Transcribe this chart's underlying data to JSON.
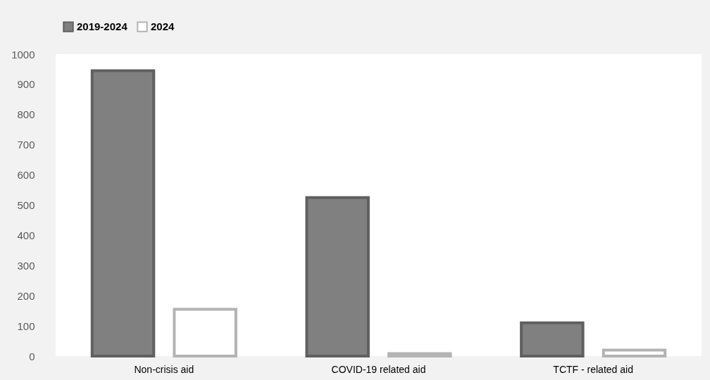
{
  "chart_data": {
    "type": "bar",
    "categories": [
      "Non-crisis aid",
      "COVID-19 related aid",
      "TCTF - related aid"
    ],
    "series": [
      {
        "name": "2019-2024",
        "color": "#808080",
        "values": [
          945,
          525,
          110
        ]
      },
      {
        "name": "2024",
        "color": "#ffffff",
        "values": [
          155,
          8,
          20
        ]
      }
    ],
    "ylim": [
      0,
      1000
    ],
    "yticks": [
      0,
      100,
      200,
      300,
      400,
      500,
      600,
      700,
      800,
      900,
      1000
    ],
    "grid": false,
    "legend": "top"
  }
}
